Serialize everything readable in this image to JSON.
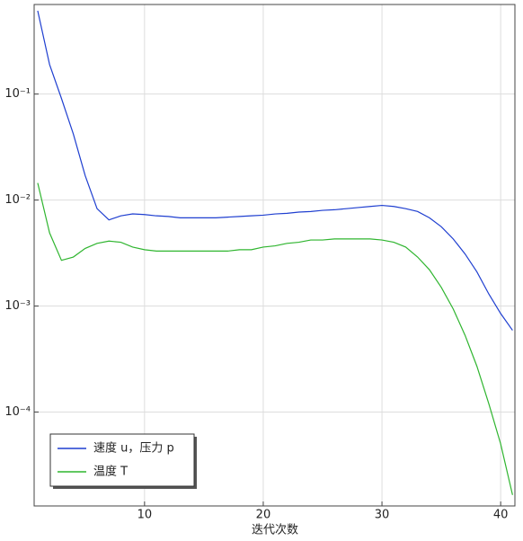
{
  "chart_data": {
    "type": "line",
    "x_label": "迭代次数",
    "log_y": true,
    "grid": true,
    "legend": "lower left",
    "xlim": [
      0.7,
      41.2
    ],
    "ylim": [
      1.3e-05,
      0.7
    ],
    "xticks": [
      10,
      20,
      30,
      40
    ],
    "yticks": [
      {
        "value": 0.1,
        "label": "10⁻¹"
      },
      {
        "value": 0.01,
        "label": "10⁻²"
      },
      {
        "value": 0.001,
        "label": "10⁻³"
      },
      {
        "value": 0.0001,
        "label": "10⁻⁴"
      }
    ],
    "x": [
      1,
      2,
      3,
      4,
      5,
      6,
      7,
      8,
      9,
      10,
      11,
      12,
      13,
      14,
      15,
      16,
      17,
      18,
      19,
      20,
      21,
      22,
      23,
      24,
      25,
      26,
      27,
      28,
      29,
      30,
      31,
      32,
      33,
      34,
      35,
      36,
      37,
      38,
      39,
      40,
      41
    ],
    "series": [
      {
        "name": "速度 u，压力 p",
        "color": "#1f3fd0",
        "values": [
          0.61,
          0.19,
          0.091,
          0.042,
          0.017,
          0.0083,
          0.0065,
          0.0071,
          0.0074,
          0.0073,
          0.0071,
          0.007,
          0.0068,
          0.0068,
          0.0068,
          0.0068,
          0.0069,
          0.007,
          0.0071,
          0.0072,
          0.0074,
          0.0075,
          0.0077,
          0.0078,
          0.008,
          0.0081,
          0.0083,
          0.0085,
          0.0087,
          0.0089,
          0.0087,
          0.0083,
          0.0078,
          0.0068,
          0.0056,
          0.0043,
          0.0031,
          0.0021,
          0.0013,
          0.00085,
          0.00059
        ]
      },
      {
        "name": "温度 T",
        "color": "#2fb52f",
        "values": [
          0.0145,
          0.0049,
          0.0027,
          0.0029,
          0.0035,
          0.0039,
          0.0041,
          0.004,
          0.0036,
          0.0034,
          0.0033,
          0.0033,
          0.0033,
          0.0033,
          0.0033,
          0.0033,
          0.0033,
          0.0034,
          0.0034,
          0.0036,
          0.0037,
          0.0039,
          0.004,
          0.0042,
          0.0042,
          0.0043,
          0.0043,
          0.0043,
          0.0043,
          0.0042,
          0.004,
          0.0036,
          0.0029,
          0.0022,
          0.0015,
          0.00094,
          0.00053,
          0.00027,
          0.00012,
          5e-05,
          1.65e-05
        ]
      }
    ]
  }
}
